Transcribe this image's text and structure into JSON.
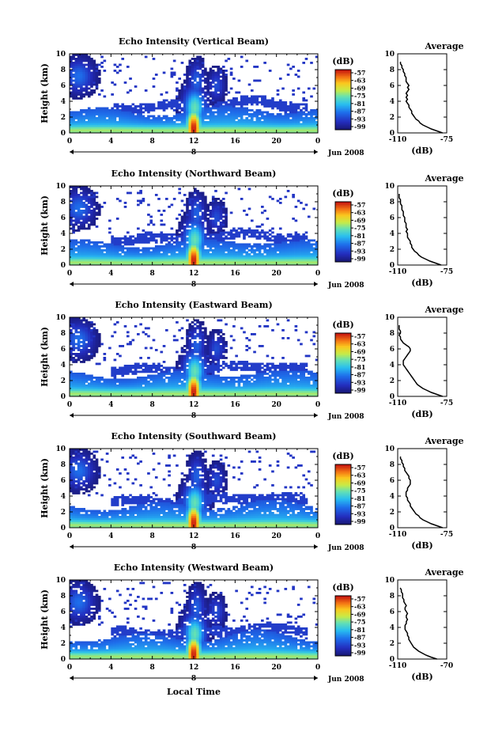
{
  "chart_data": {
    "type": "heatmap",
    "shared": {
      "ylabel": "Height (km)",
      "xlabel": "Local Time",
      "date_label": "Jun 2008",
      "day_label": "8",
      "xticks": [
        "0",
        "4",
        "8",
        "12",
        "16",
        "20",
        "0"
      ],
      "yticks": [
        "0",
        "2",
        "4",
        "6",
        "8",
        "10"
      ],
      "xlim_hours": [
        0,
        24
      ],
      "ylim_km": [
        0,
        10
      ],
      "colorbar_title": "(dB)",
      "colorbar_ticks": [
        "-57",
        "-63",
        "-69",
        "-75",
        "-81",
        "-87",
        "-93",
        "-99"
      ],
      "colorbar_range_db": [
        -99,
        -57
      ],
      "avg_title": "Average",
      "avg_xlabel": "(dB)",
      "avg_height_km": [
        0,
        0.25,
        0.5,
        0.75,
        1,
        1.25,
        1.5,
        1.75,
        2,
        2.25,
        2.5,
        2.75,
        3,
        3.25,
        3.5,
        3.75,
        4,
        4.25,
        4.5,
        4.75,
        5,
        5.25,
        5.5,
        5.75,
        6,
        6.25,
        6.5,
        6.75,
        7,
        7.25,
        7.5,
        7.75,
        8,
        8.25,
        8.5,
        8.75,
        9
      ]
    },
    "panels": [
      {
        "title": "Echo Intensity (Vertical Beam)",
        "avg_xticks": [
          "-110",
          "-75"
        ],
        "avg_xlim": [
          -110,
          -75
        ],
        "avg_profile_db": [
          -78,
          -82,
          -86,
          -89,
          -92,
          -94,
          -95,
          -97,
          -98,
          -99,
          -100,
          -100,
          -101,
          -102,
          -102,
          -103,
          -104,
          -103,
          -104,
          -103,
          -104,
          -103,
          -102,
          -103,
          -102,
          -103,
          -104,
          -104,
          -104,
          -105,
          -105,
          -106,
          -106,
          -107,
          -107,
          -108,
          -108
        ]
      },
      {
        "title": "Echo Intensity (Northward Beam)",
        "avg_xticks": [
          "-110",
          "-75"
        ],
        "avg_xlim": [
          -110,
          -75
        ],
        "avg_profile_db": [
          -79,
          -83,
          -87,
          -90,
          -93,
          -95,
          -96,
          -98,
          -99,
          -100,
          -100,
          -101,
          -101,
          -102,
          -103,
          -103,
          -103,
          -104,
          -103,
          -104,
          -104,
          -104,
          -105,
          -105,
          -105,
          -106,
          -106,
          -106,
          -107,
          -107,
          -107,
          -108,
          -108,
          -108,
          -109,
          -109,
          -109
        ]
      },
      {
        "title": "Echo Intensity (Eastward Beam)",
        "avg_xticks": [
          "-110",
          "-75"
        ],
        "avg_xlim": [
          -110,
          -75
        ],
        "avg_profile_db": [
          -78,
          -82,
          -86,
          -89,
          -92,
          -94,
          -96,
          -97,
          -98,
          -99,
          -100,
          -101,
          -102,
          -103,
          -104,
          -105,
          -106,
          -106,
          -106,
          -105,
          -104,
          -103,
          -102,
          -101,
          -101,
          -102,
          -104,
          -106,
          -107,
          -108,
          -108,
          -109,
          -108,
          -108,
          -109,
          -109,
          -109
        ]
      },
      {
        "title": "Echo Intensity (Southward Beam)",
        "avg_xticks": [
          "-110",
          "-75"
        ],
        "avg_xlim": [
          -110,
          -75
        ],
        "avg_profile_db": [
          -78,
          -82,
          -86,
          -89,
          -92,
          -94,
          -95,
          -97,
          -98,
          -99,
          -100,
          -101,
          -101,
          -102,
          -103,
          -103,
          -104,
          -104,
          -104,
          -103,
          -103,
          -102,
          -101,
          -101,
          -101,
          -102,
          -102,
          -103,
          -104,
          -105,
          -105,
          -106,
          -106,
          -107,
          -107,
          -108,
          -108
        ]
      },
      {
        "title": "Echo Intensity (Westward Beam)",
        "avg_xticks": [
          "-110",
          "-70"
        ],
        "avg_xlim": [
          -110,
          -70
        ],
        "avg_profile_db": [
          -78,
          -83,
          -87,
          -90,
          -93,
          -95,
          -97,
          -98,
          -99,
          -100,
          -101,
          -101,
          -102,
          -102,
          -103,
          -104,
          -104,
          -104,
          -103,
          -103,
          -102,
          -103,
          -103,
          -102,
          -103,
          -104,
          -104,
          -103,
          -104,
          -105,
          -105,
          -106,
          -106,
          -106,
          -107,
          -107,
          -108
        ]
      }
    ]
  }
}
